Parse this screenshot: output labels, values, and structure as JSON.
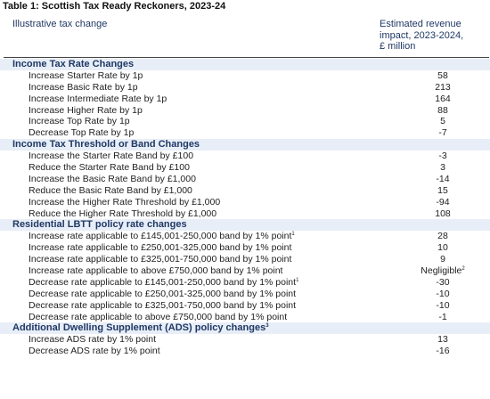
{
  "title": "Table 1: Scottish Tax Ready Reckoners, 2023-24",
  "header": {
    "left": "Illustrative tax change",
    "right": [
      "Estimated revenue",
      "impact, 2023-2024,",
      "£ million"
    ]
  },
  "sections": [
    {
      "label": "Income Tax Rate Changes",
      "sup": "",
      "rows": [
        {
          "label": "Increase Starter Rate by 1p",
          "sup": "",
          "value": "58",
          "value_sup": ""
        },
        {
          "label": "Increase Basic Rate by 1p",
          "sup": "",
          "value": "213",
          "value_sup": ""
        },
        {
          "label": "Increase Intermediate Rate by 1p",
          "sup": "",
          "value": "164",
          "value_sup": ""
        },
        {
          "label": "Increase Higher Rate by 1p",
          "sup": "",
          "value": "88",
          "value_sup": ""
        },
        {
          "label": "Increase Top Rate by 1p",
          "sup": "",
          "value": "5",
          "value_sup": ""
        },
        {
          "label": "Decrease Top Rate by 1p",
          "sup": "",
          "value": "-7",
          "value_sup": ""
        }
      ]
    },
    {
      "label": "Income Tax Threshold or Band Changes",
      "sup": "",
      "rows": [
        {
          "label": "Increase the Starter Rate Band by £100",
          "sup": "",
          "value": "-3",
          "value_sup": ""
        },
        {
          "label": "Reduce the Starter Rate Band by £100",
          "sup": "",
          "value": "3",
          "value_sup": ""
        },
        {
          "label": "Increase the Basic Rate Band by £1,000",
          "sup": "",
          "value": "-14",
          "value_sup": ""
        },
        {
          "label": "Reduce the Basic Rate Band by £1,000",
          "sup": "",
          "value": "15",
          "value_sup": ""
        },
        {
          "label": "Increase the Higher Rate Threshold by £1,000",
          "sup": "",
          "value": "-94",
          "value_sup": ""
        },
        {
          "label": "Reduce the Higher Rate Threshold by £1,000",
          "sup": "",
          "value": "108",
          "value_sup": ""
        }
      ]
    },
    {
      "label": "Residential LBTT policy rate changes",
      "sup": "",
      "rows": [
        {
          "label": "Increase rate applicable to £145,001-250,000 band by 1% point",
          "sup": "1",
          "value": "28",
          "value_sup": ""
        },
        {
          "label": "Increase rate applicable to £250,001-325,000 band by 1% point",
          "sup": "",
          "value": "10",
          "value_sup": ""
        },
        {
          "label": "Increase rate applicable to £325,001-750,000 band by 1% point",
          "sup": "",
          "value": "9",
          "value_sup": ""
        },
        {
          "label": "Increase rate applicable to above £750,000 band by 1% point",
          "sup": "",
          "value": "Negligible",
          "value_sup": "2"
        },
        {
          "label": "Decrease rate applicable to £145,001-250,000 band by 1% point",
          "sup": "1",
          "value": "-30",
          "value_sup": ""
        },
        {
          "label": "Decrease rate applicable to £250,001-325,000 band by 1% point",
          "sup": "",
          "value": "-10",
          "value_sup": ""
        },
        {
          "label": "Decrease rate applicable to £325,001-750,000 band by 1% point",
          "sup": "",
          "value": "-10",
          "value_sup": ""
        },
        {
          "label": "Decrease rate applicable to above £750,000 band by 1% point",
          "sup": "",
          "value": "-1",
          "value_sup": ""
        }
      ]
    },
    {
      "label": "Additional Dwelling Supplement (ADS) policy changes",
      "sup": "3",
      "rows": [
        {
          "label": "Increase ADS rate by 1% point",
          "sup": "",
          "value": "13",
          "value_sup": ""
        },
        {
          "label": "Decrease ADS rate by 1% point",
          "sup": "",
          "value": "-16",
          "value_sup": ""
        }
      ]
    }
  ]
}
